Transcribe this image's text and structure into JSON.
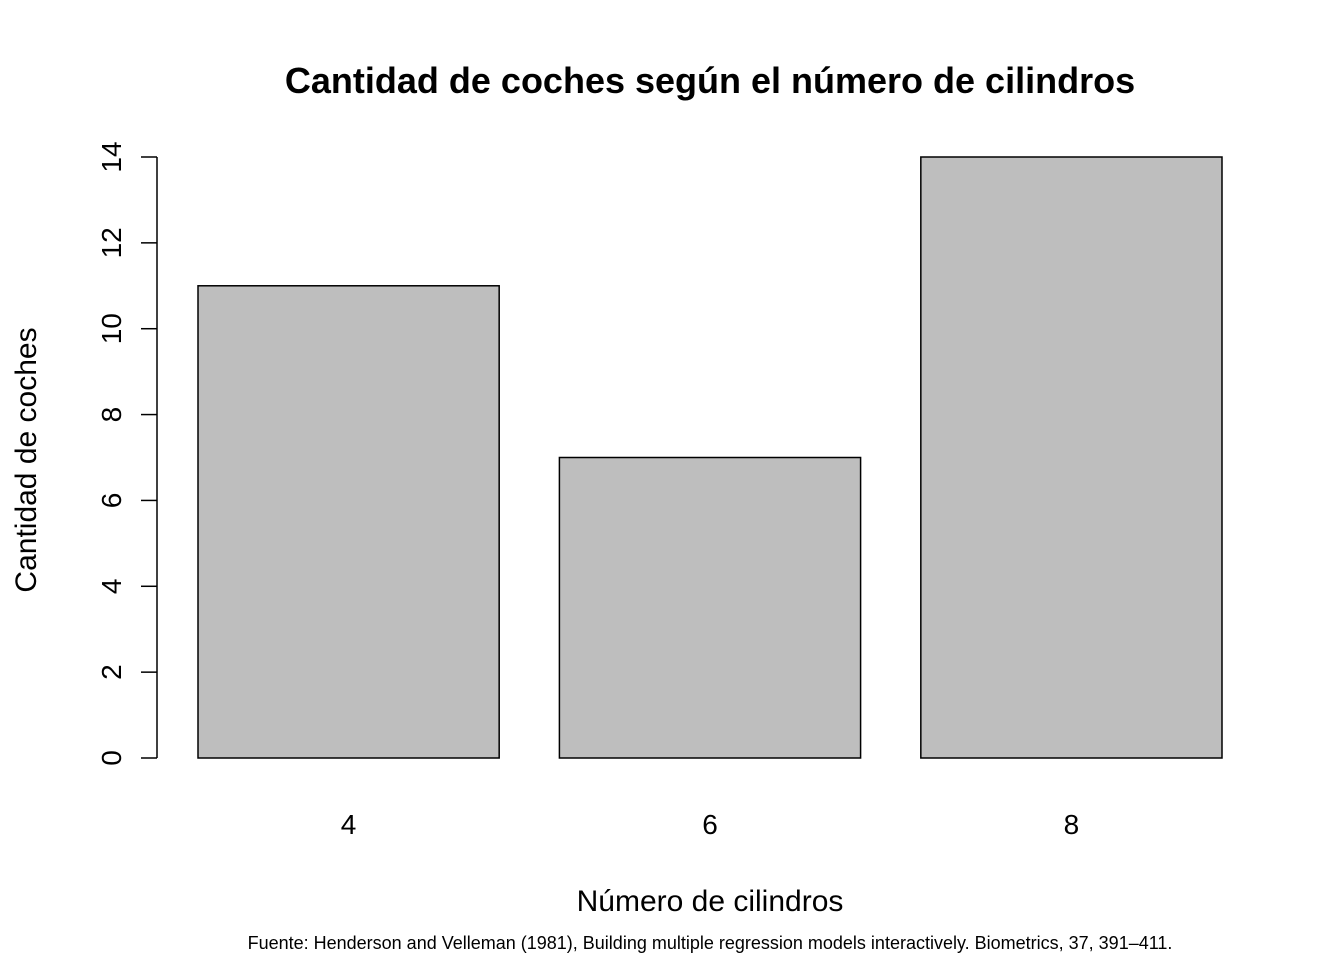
{
  "chart_data": {
    "type": "bar",
    "title": "Cantidad de coches según el número de cilindros",
    "xlabel": "Número de cilindros",
    "ylabel": "Cantidad de coches",
    "categories": [
      "4",
      "6",
      "8"
    ],
    "values": [
      11,
      7,
      14
    ],
    "ylim": [
      0,
      14
    ],
    "yticks": [
      0,
      2,
      4,
      6,
      8,
      10,
      12,
      14
    ],
    "bar_color": "#bebebe",
    "grid": false,
    "legend": "none",
    "caption": "Fuente: Henderson and Velleman (1981), Building multiple regression models interactively. Biometrics, 37, 391–411."
  }
}
